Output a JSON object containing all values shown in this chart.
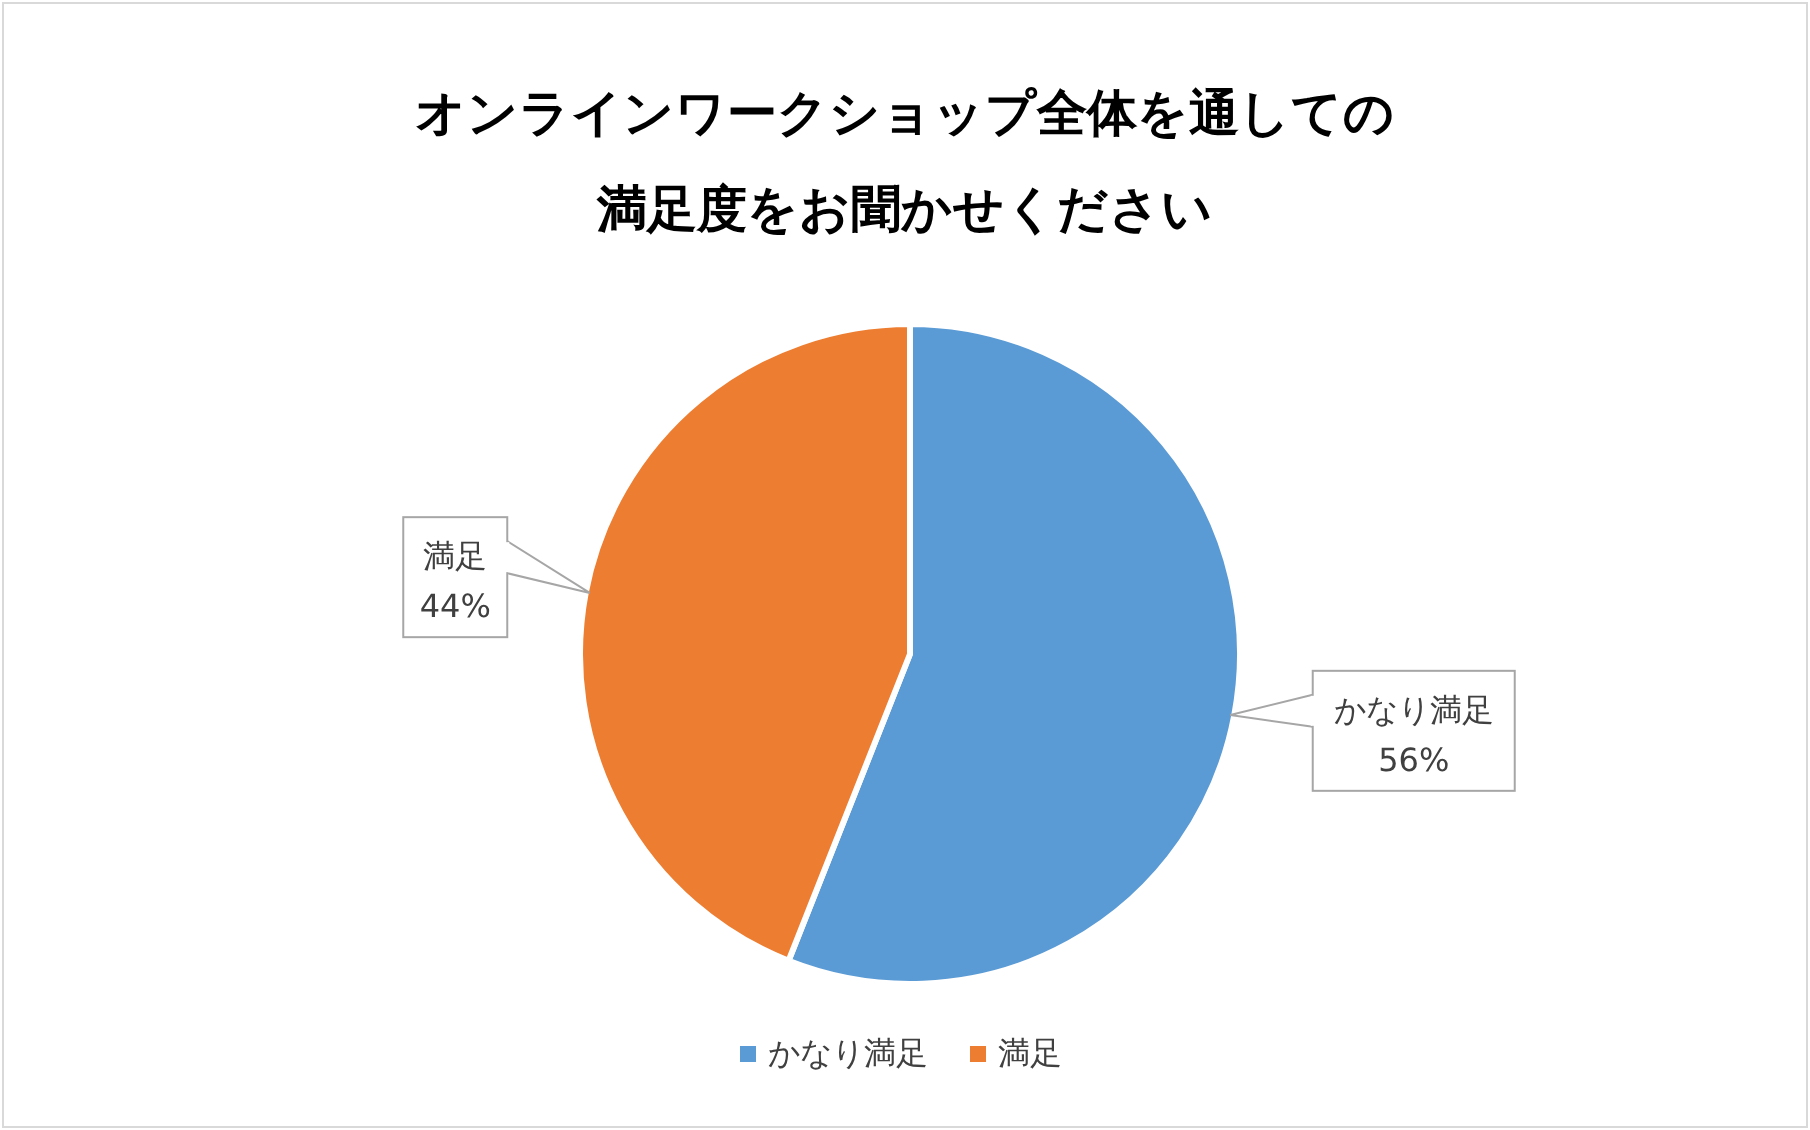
{
  "chart_data": {
    "type": "pie",
    "title": "オンラインワークショップ全体を通しての満足度をお聞かせください",
    "categories": [
      "かなり満足",
      "満足"
    ],
    "values": [
      56,
      44
    ],
    "colors": [
      "#5b9bd5",
      "#ed7d31"
    ],
    "value_labels": [
      "56%",
      "44%"
    ],
    "legend": "bottom"
  }
}
